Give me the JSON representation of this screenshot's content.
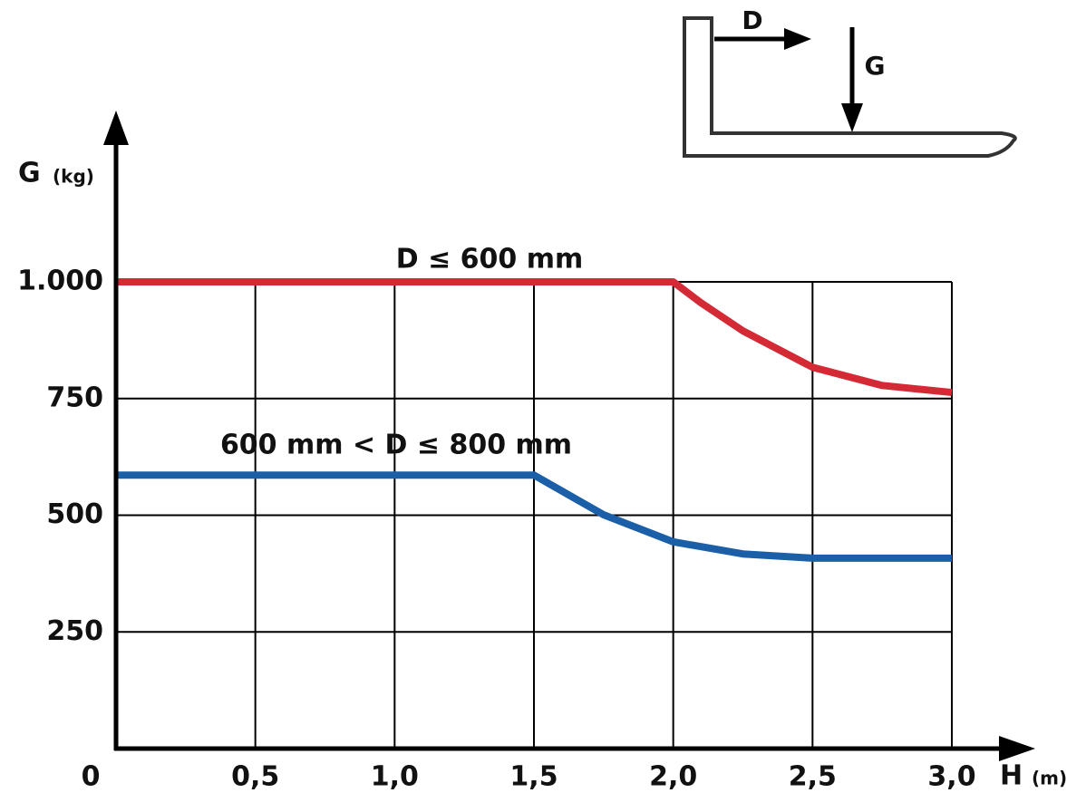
{
  "chart_data": {
    "type": "line",
    "x_label": "H",
    "x_unit": "(m)",
    "y_label": "G",
    "y_unit": "(kg)",
    "inset": {
      "distance_label": "D",
      "force_label": "G"
    },
    "xlim": [
      0,
      3
    ],
    "ylim": [
      0,
      1000
    ],
    "xticks": [
      0,
      {
        "value": 0.5,
        "label": "0,5"
      },
      {
        "value": 1,
        "label": "1,0"
      },
      {
        "value": 1.5,
        "label": "1,5"
      },
      {
        "value": 2,
        "label": "2,0"
      },
      {
        "value": 2.5,
        "label": "2,5"
      },
      {
        "value": 3,
        "label": "3,0"
      }
    ],
    "yticks": [
      250,
      500,
      750,
      {
        "value": 1000,
        "label": "1.000"
      }
    ],
    "grid": true,
    "series": [
      {
        "name": "D ≤ 600 mm",
        "color": "#d42a35",
        "x": [
          0,
          0.5,
          1,
          1.5,
          2,
          2.1,
          2.25,
          2.5,
          2.75,
          3
        ],
        "values": [
          1000,
          1000,
          1000,
          1000,
          1000,
          955,
          895,
          817,
          778,
          763
        ]
      },
      {
        "name": "600 mm < D ≤ 800 mm",
        "color": "#1a5fa8",
        "x": [
          0,
          0.5,
          1,
          1.5,
          1.75,
          2,
          2.25,
          2.5,
          3
        ],
        "values": [
          586,
          586,
          586,
          586,
          501,
          443,
          417,
          408,
          408
        ]
      }
    ]
  }
}
